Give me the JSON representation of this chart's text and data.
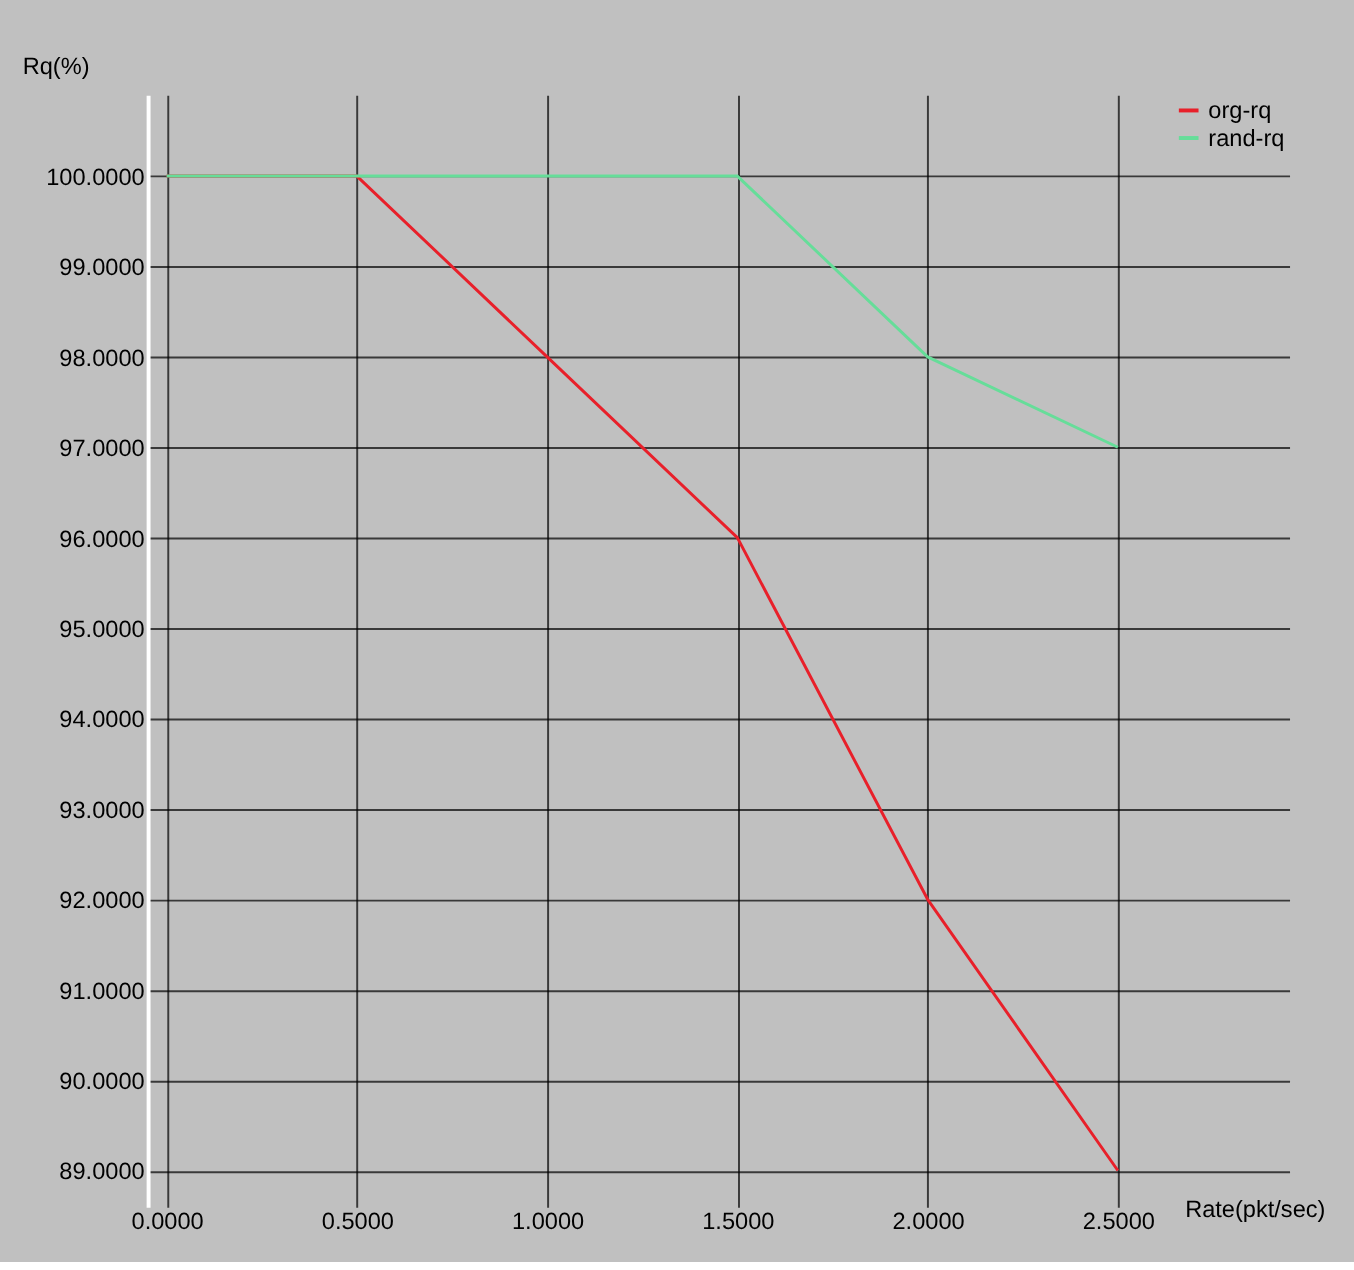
{
  "chart_data": {
    "type": "line",
    "xlabel": "Rate(pkt/sec)",
    "ylabel": "Rq(%)",
    "x": [
      0,
      0.5,
      1.0,
      1.5,
      2.0,
      2.5
    ],
    "series": [
      {
        "name": "org-rq",
        "color": "#e8202a",
        "values": [
          100,
          100,
          98,
          96,
          92,
          89
        ]
      },
      {
        "name": "rand-rq",
        "color": "#66dd99",
        "values": [
          100,
          100,
          100,
          100,
          98,
          97
        ]
      }
    ],
    "xlim": [
      -0.05,
      2.95
    ],
    "ylim": [
      88.6,
      100.9
    ],
    "xticks": [
      {
        "value": 0,
        "label": "0.0000"
      },
      {
        "value": 0.5,
        "label": "0.5000"
      },
      {
        "value": 1.0,
        "label": "1.0000"
      },
      {
        "value": 1.5,
        "label": "1.5000"
      },
      {
        "value": 2.0,
        "label": "2.0000"
      },
      {
        "value": 2.5,
        "label": "2.5000"
      }
    ],
    "yticks": [
      {
        "value": 89,
        "label": "89.0000"
      },
      {
        "value": 90,
        "label": "90.0000"
      },
      {
        "value": 91,
        "label": "91.0000"
      },
      {
        "value": 92,
        "label": "92.0000"
      },
      {
        "value": 93,
        "label": "93.0000"
      },
      {
        "value": 94,
        "label": "94.0000"
      },
      {
        "value": 95,
        "label": "95.0000"
      },
      {
        "value": 96,
        "label": "96.0000"
      },
      {
        "value": 97,
        "label": "97.0000"
      },
      {
        "value": 98,
        "label": "98.0000"
      },
      {
        "value": 99,
        "label": "99.0000"
      },
      {
        "value": 100,
        "label": "100.0000"
      }
    ],
    "grid": true,
    "legend": "top right",
    "marker": "none",
    "line_style": "solid"
  }
}
